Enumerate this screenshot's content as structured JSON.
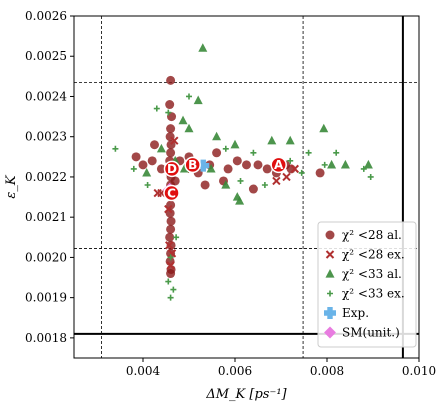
{
  "chart_data": {
    "type": "scatter",
    "xlabel": "ΔM_K [ps⁻¹]",
    "ylabel": "ε_K",
    "xlim": [
      0.0025,
      0.01
    ],
    "ylim": [
      0.00175,
      0.0026
    ],
    "xticks": [
      0.004,
      0.006,
      0.008,
      0.01
    ],
    "xtick_labels": [
      "0.004",
      "0.006",
      "0.008",
      "0.010"
    ],
    "yticks": [
      0.0018,
      0.0019,
      0.002,
      0.0021,
      0.0022,
      0.0023,
      0.0024,
      0.0025,
      0.0026
    ],
    "ytick_labels": [
      "0.0018",
      "0.0019",
      "0.0020",
      "0.0021",
      "0.0022",
      "0.0023",
      "0.0024",
      "0.0025",
      "0.0026"
    ],
    "reference_lines": {
      "solid_vertical": 0.00965,
      "solid_horizontal": 0.00181,
      "dashed_vertical": [
        0.0031,
        0.00748
      ],
      "dashed_horizontal": [
        0.002435,
        0.002022
      ]
    },
    "grid": false,
    "legend_position": "bottom-right",
    "series": [
      {
        "name": "χ² <28 al.",
        "marker": "circle",
        "color": "#8b1a1a",
        "points": [
          [
            0.0046,
            0.00244
          ],
          [
            0.00458,
            0.00238
          ],
          [
            0.00462,
            0.00235
          ],
          [
            0.0046,
            0.00232
          ],
          [
            0.00459,
            0.0023
          ],
          [
            0.00461,
            0.00228
          ],
          [
            0.0046,
            0.00226
          ],
          [
            0.00458,
            0.00224
          ],
          [
            0.00462,
            0.00223
          ],
          [
            0.0046,
            0.00222
          ],
          [
            0.00459,
            0.00221
          ],
          [
            0.00461,
            0.0022
          ],
          [
            0.0046,
            0.00218
          ],
          [
            0.00458,
            0.00216
          ],
          [
            0.00462,
            0.00215
          ],
          [
            0.0046,
            0.00213
          ],
          [
            0.00459,
            0.00211
          ],
          [
            0.00461,
            0.00209
          ],
          [
            0.0046,
            0.00207
          ],
          [
            0.00458,
            0.00205
          ],
          [
            0.00461,
            0.00203
          ],
          [
            0.0046,
            0.00201
          ],
          [
            0.00459,
            0.00199
          ],
          [
            0.00461,
            0.00197
          ],
          [
            0.0046,
            0.00196
          ],
          [
            0.004,
            0.00223
          ],
          [
            0.00385,
            0.00225
          ],
          [
            0.0042,
            0.00224
          ],
          [
            0.0044,
            0.00222
          ],
          [
            0.005,
            0.00225
          ],
          [
            0.0052,
            0.00221
          ],
          [
            0.00545,
            0.00223
          ],
          [
            0.0056,
            0.00226
          ],
          [
            0.00585,
            0.00222
          ],
          [
            0.00605,
            0.00224
          ],
          [
            0.00625,
            0.00223
          ],
          [
            0.0065,
            0.00223
          ],
          [
            0.0067,
            0.00222
          ],
          [
            0.0069,
            0.00221
          ],
          [
            0.0071,
            0.00223
          ],
          [
            0.00722,
            0.00222
          ],
          [
            0.00785,
            0.00221
          ],
          [
            0.00425,
            0.00228
          ],
          [
            0.0047,
            0.00219
          ],
          [
            0.0048,
            0.00224
          ],
          [
            0.00535,
            0.00218
          ],
          [
            0.00575,
            0.00219
          ],
          [
            0.0064,
            0.00217
          ]
        ]
      },
      {
        "name": "χ² <28 ex.",
        "marker": "cross",
        "color": "#b03030",
        "points": [
          [
            0.0046,
            0.00198
          ],
          [
            0.00463,
            0.00201
          ],
          [
            0.00457,
            0.00203
          ],
          [
            0.00432,
            0.00216
          ],
          [
            0.0044,
            0.00216
          ],
          [
            0.00712,
            0.0022
          ],
          [
            0.0073,
            0.00222
          ],
          [
            0.0069,
            0.00219
          ],
          [
            0.00505,
            0.00222
          ],
          [
            0.00468,
            0.00229
          ],
          [
            0.00455,
            0.00212
          ]
        ]
      },
      {
        "name": "χ² <33 al.",
        "marker": "triangle",
        "color": "#3a8a3a",
        "points": [
          [
            0.0053,
            0.00252
          ],
          [
            0.0052,
            0.00239
          ],
          [
            0.00487,
            0.00234
          ],
          [
            0.005,
            0.00232
          ],
          [
            0.0056,
            0.0023
          ],
          [
            0.006,
            0.00228
          ],
          [
            0.0068,
            0.00229
          ],
          [
            0.0072,
            0.00229
          ],
          [
            0.00793,
            0.00232
          ],
          [
            0.0081,
            0.00223
          ],
          [
            0.0084,
            0.00223
          ],
          [
            0.0089,
            0.00223
          ],
          [
            0.00605,
            0.00215
          ],
          [
            0.0061,
            0.00214
          ],
          [
            0.0058,
            0.00218
          ],
          [
            0.00408,
            0.00221
          ],
          [
            0.0047,
            0.00224
          ],
          [
            0.0049,
            0.00222
          ],
          [
            0.00548,
            0.00222
          ],
          [
            0.0044,
            0.00227
          ]
        ]
      },
      {
        "name": "χ² <33 ex.",
        "marker": "plus",
        "color": "#4a9a4a",
        "points": [
          [
            0.0034,
            0.00227
          ],
          [
            0.0038,
            0.00222
          ],
          [
            0.0041,
            0.00218
          ],
          [
            0.0046,
            0.002
          ],
          [
            0.00466,
            0.00192
          ],
          [
            0.00455,
            0.00194
          ],
          [
            0.0046,
            0.0019
          ],
          [
            0.00472,
            0.00205
          ],
          [
            0.0043,
            0.00237
          ],
          [
            0.00455,
            0.00236
          ],
          [
            0.005,
            0.0024
          ],
          [
            0.0058,
            0.00227
          ],
          [
            0.0064,
            0.00226
          ],
          [
            0.0072,
            0.00224
          ],
          [
            0.0076,
            0.00226
          ],
          [
            0.00795,
            0.00223
          ],
          [
            0.0082,
            0.00226
          ],
          [
            0.0088,
            0.00222
          ],
          [
            0.00895,
            0.0022
          ],
          [
            0.00745,
            0.00221
          ],
          [
            0.00665,
            0.00218
          ],
          [
            0.00612,
            0.00219
          ]
        ]
      },
      {
        "name": "Exp.",
        "marker": "cross-filled",
        "color": "#6ab4e8",
        "points": [
          [
            0.00531,
            0.002228
          ]
        ]
      },
      {
        "name": "SM(unit.)",
        "marker": "diamond",
        "color": "#e87ce0",
        "points": [
          [
            0.00458,
            0.002168
          ]
        ]
      }
    ],
    "annotations": [
      {
        "text": "A",
        "x": 0.00695,
        "y": 0.00223
      },
      {
        "text": "B",
        "x": 0.00508,
        "y": 0.00223
      },
      {
        "text": "C",
        "x": 0.00462,
        "y": 0.00216
      },
      {
        "text": "D",
        "x": 0.00463,
        "y": 0.00222
      }
    ]
  }
}
